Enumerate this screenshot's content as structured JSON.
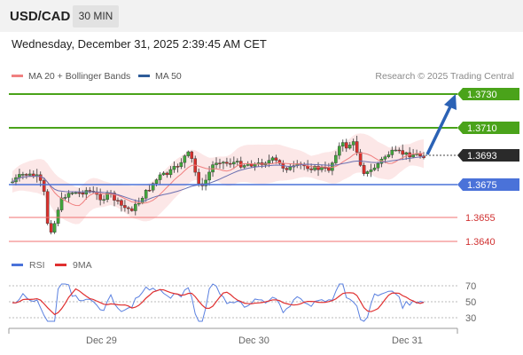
{
  "header": {
    "symbol": "USD/CAD",
    "timeframe": "30 MIN"
  },
  "datetime": "Wednesday, December 31, 2025 2:39:45 AM CET",
  "legend": {
    "items": [
      {
        "label": "MA 20 + Bollinger Bands",
        "color": "#f08080"
      },
      {
        "label": "MA 50",
        "color": "#2e5c99"
      }
    ],
    "copyright": "Research © 2025 Trading Central"
  },
  "levels": {
    "resistance_2": "1.3730",
    "resistance_1": "1.3710",
    "current": "1.3693",
    "pivot": "1.3675",
    "support_1": "1.3655",
    "support_2": "1.3640"
  },
  "colors": {
    "green": "#4aa31a",
    "blue": "#4a72d9",
    "red": "#e04c4c",
    "dark": "#2a2a2a",
    "arrow": "#2b62b5",
    "candle_red": "#d9302c",
    "candle_green": "#41a63b"
  },
  "oscillator": {
    "legend": [
      {
        "label": "RSI",
        "color": "#4a72d9"
      },
      {
        "label": "9MA",
        "color": "#e03030"
      }
    ],
    "ticks": [
      "70",
      "50",
      "30"
    ]
  },
  "x_axis": {
    "labels": [
      "Dec 29",
      "Dec 30",
      "Dec 31"
    ]
  }
}
